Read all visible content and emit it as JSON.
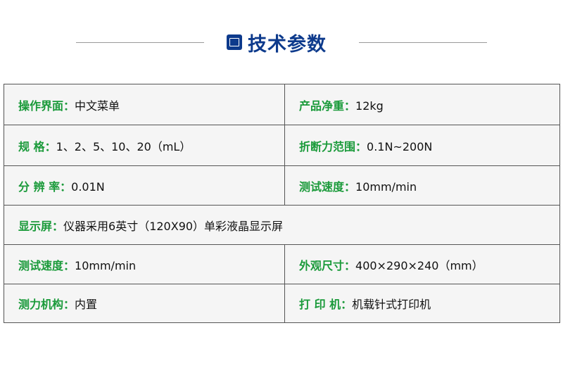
{
  "header": {
    "title": "技术参数",
    "icon": "spec-document-icon",
    "color": "#0d3a8c"
  },
  "label_color": "#1a9a3a",
  "rows": [
    [
      {
        "label": "操作界面：",
        "value": "中文菜单"
      },
      {
        "label": "产品净重：",
        "value": "12kg"
      }
    ],
    [
      {
        "label": "规 格：",
        "value": "1、2、5、10、20（mL）"
      },
      {
        "label": "折断力范围：",
        "value": "0.1N~200N"
      }
    ],
    [
      {
        "label": "分 辨 率：",
        "value": "0.01N"
      },
      {
        "label": "测试速度：",
        "value": "10mm/min"
      }
    ],
    [
      {
        "label": "显示屏：",
        "value": "仪器采用6英寸（120X90）单彩液晶显示屏"
      }
    ],
    [
      {
        "label": "测试速度：",
        "value": "10mm/min"
      },
      {
        "label": "外观尺寸：",
        "value": "400×290×240（mm）"
      }
    ],
    [
      {
        "label": "测力机构：",
        "value": "内置"
      },
      {
        "label": "打 印 机：",
        "value": "机载针式打印机"
      }
    ]
  ]
}
